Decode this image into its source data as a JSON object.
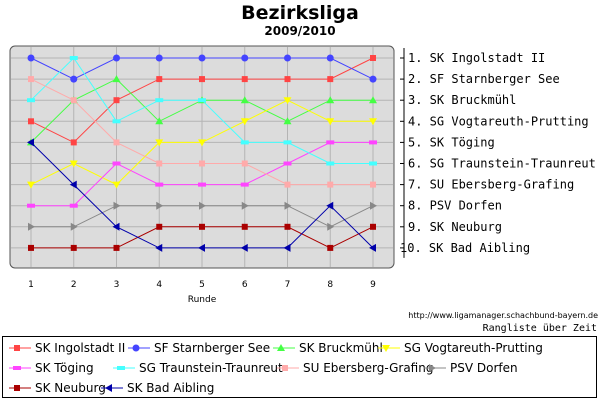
{
  "chart_data": {
    "type": "line",
    "title": "Bezirksliga",
    "subtitle": "2009/2010",
    "xlabel": "Runde",
    "x": [
      1,
      2,
      3,
      4,
      5,
      6,
      7,
      8,
      9
    ],
    "y_axis": "rank",
    "ylim": [
      1,
      10
    ],
    "y_inverted": true,
    "grid": true,
    "legend_position": "bottom",
    "right_labels": [
      "1. SK Ingolstadt II",
      "2. SF Starnberger See",
      "3. SK Bruckmühl",
      "4. SG Vogtareuth-Prutting",
      "5. SK Töging",
      "6. SG Traunstein-Traunreut",
      "7. SU Ebersberg-Grafing",
      "8. PSV Dorfen",
      "9. SK Neuburg",
      "10. SK Bad Aibling"
    ],
    "series": [
      {
        "name": "SK Ingolstadt II",
        "color": "#ff4444",
        "marker": "square",
        "values": [
          4,
          5,
          3,
          2,
          2,
          2,
          2,
          2,
          1
        ]
      },
      {
        "name": "SF Starnberger See",
        "color": "#4444ff",
        "marker": "circle",
        "values": [
          1,
          2,
          1,
          1,
          1,
          1,
          1,
          1,
          2
        ]
      },
      {
        "name": "SK Bruckmühl",
        "color": "#44ff44",
        "marker": "triangle-up",
        "values": [
          5,
          3,
          2,
          4,
          3,
          3,
          4,
          3,
          3
        ]
      },
      {
        "name": "SG Vogtareuth-Prutting",
        "color": "#ffff00",
        "marker": "triangle-down",
        "values": [
          7,
          6,
          7,
          5,
          5,
          4,
          3,
          4,
          4
        ]
      },
      {
        "name": "SK Töging",
        "color": "#ff44ff",
        "marker": "dash",
        "values": [
          8,
          8,
          6,
          7,
          7,
          7,
          6,
          5,
          5
        ]
      },
      {
        "name": "SG Traunstein-Traunreut",
        "color": "#44ffff",
        "marker": "dash",
        "values": [
          3,
          1,
          4,
          3,
          3,
          5,
          5,
          6,
          6
        ]
      },
      {
        "name": "SU Ebersberg-Grafing",
        "color": "#ffaaaa",
        "marker": "square",
        "values": [
          2,
          3,
          5,
          6,
          6,
          6,
          7,
          7,
          7
        ]
      },
      {
        "name": "PSV Dorfen",
        "color": "#888888",
        "marker": "triangle-right",
        "values": [
          9,
          9,
          8,
          8,
          8,
          8,
          8,
          9,
          8
        ]
      },
      {
        "name": "SK Neuburg",
        "color": "#aa0000",
        "marker": "square",
        "values": [
          10,
          10,
          10,
          9,
          9,
          9,
          9,
          10,
          9
        ]
      },
      {
        "name": "SK Bad Aibling",
        "color": "#0000aa",
        "marker": "triangle-left",
        "values": [
          5,
          7,
          9,
          10,
          10,
          10,
          10,
          8,
          10
        ]
      }
    ]
  },
  "footer": {
    "url": "http://www.ligamanager.schachbund-bayern.de",
    "note": "Rangliste über Zeit"
  }
}
